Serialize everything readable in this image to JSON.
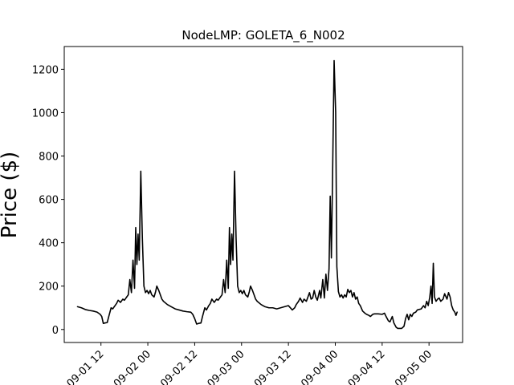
{
  "chart_data": {
    "type": "line",
    "title": "NodeLMP: GOLETA_6_N002",
    "xlabel": "",
    "ylabel": "Price ($)",
    "x_unit": "hours",
    "x_ticks": [
      {
        "hours": 36,
        "label": "09-01 12"
      },
      {
        "hours": 48,
        "label": "09-02 00"
      },
      {
        "hours": 60,
        "label": "09-02 12"
      },
      {
        "hours": 72,
        "label": "09-03 00"
      },
      {
        "hours": 84,
        "label": "09-03 12"
      },
      {
        "hours": 96,
        "label": "09-04 00"
      },
      {
        "hours": 108,
        "label": "09-04 12"
      },
      {
        "hours": 120,
        "label": "09-05 00"
      }
    ],
    "y_ticks": [
      0,
      200,
      400,
      600,
      800,
      1000,
      1200
    ],
    "xlim": [
      26.6,
      128.6
    ],
    "ylim": [
      -60,
      1305
    ],
    "grid": false,
    "color": "#000000",
    "series": [
      {
        "points": [
          [
            30,
            105
          ],
          [
            31,
            100
          ],
          [
            32,
            92
          ],
          [
            33,
            88
          ],
          [
            34,
            85
          ],
          [
            35,
            80
          ],
          [
            35.8,
            70
          ],
          [
            36.2,
            60
          ],
          [
            36.6,
            28
          ],
          [
            37,
            30
          ],
          [
            37.6,
            32
          ],
          [
            38,
            60
          ],
          [
            38.6,
            100
          ],
          [
            39,
            95
          ],
          [
            39.6,
            110
          ],
          [
            40,
            120
          ],
          [
            40.4,
            135
          ],
          [
            41,
            125
          ],
          [
            41.6,
            140
          ],
          [
            42,
            135
          ],
          [
            42.6,
            150
          ],
          [
            43,
            160
          ],
          [
            43.4,
            230
          ],
          [
            43.8,
            170
          ],
          [
            44.2,
            320
          ],
          [
            44.6,
            190
          ],
          [
            44.9,
            470
          ],
          [
            45.2,
            300
          ],
          [
            45.5,
            440
          ],
          [
            45.8,
            320
          ],
          [
            46.2,
            730
          ],
          [
            46.6,
            420
          ],
          [
            47,
            200
          ],
          [
            47.4,
            170
          ],
          [
            47.8,
            180
          ],
          [
            48.2,
            165
          ],
          [
            48.6,
            180
          ],
          [
            49,
            160
          ],
          [
            49.6,
            150
          ],
          [
            50,
            175
          ],
          [
            50.3,
            200
          ],
          [
            50.8,
            180
          ],
          [
            51.2,
            160
          ],
          [
            51.6,
            140
          ],
          [
            52,
            130
          ],
          [
            53,
            115
          ],
          [
            54,
            105
          ],
          [
            55,
            95
          ],
          [
            56,
            90
          ],
          [
            57,
            85
          ],
          [
            58,
            82
          ],
          [
            59,
            80
          ],
          [
            59.5,
            70
          ],
          [
            60,
            50
          ],
          [
            60.5,
            25
          ],
          [
            61,
            28
          ],
          [
            61.6,
            30
          ],
          [
            62,
            60
          ],
          [
            62.6,
            100
          ],
          [
            63,
            90
          ],
          [
            63.6,
            110
          ],
          [
            64,
            120
          ],
          [
            64.4,
            140
          ],
          [
            65,
            125
          ],
          [
            65.6,
            140
          ],
          [
            66,
            135
          ],
          [
            66.6,
            150
          ],
          [
            67,
            160
          ],
          [
            67.4,
            230
          ],
          [
            67.8,
            170
          ],
          [
            68.2,
            320
          ],
          [
            68.6,
            190
          ],
          [
            68.9,
            470
          ],
          [
            69.2,
            300
          ],
          [
            69.5,
            440
          ],
          [
            69.8,
            320
          ],
          [
            70.2,
            730
          ],
          [
            70.6,
            420
          ],
          [
            71,
            200
          ],
          [
            71.4,
            170
          ],
          [
            71.8,
            180
          ],
          [
            72.2,
            165
          ],
          [
            72.6,
            180
          ],
          [
            73,
            160
          ],
          [
            73.6,
            150
          ],
          [
            74,
            175
          ],
          [
            74.3,
            200
          ],
          [
            74.8,
            180
          ],
          [
            75.2,
            160
          ],
          [
            75.6,
            140
          ],
          [
            76,
            130
          ],
          [
            77,
            115
          ],
          [
            78,
            105
          ],
          [
            79,
            100
          ],
          [
            80,
            100
          ],
          [
            81,
            95
          ],
          [
            82,
            100
          ],
          [
            83,
            105
          ],
          [
            84,
            110
          ],
          [
            85,
            90
          ],
          [
            85.6,
            100
          ],
          [
            86,
            115
          ],
          [
            86.6,
            130
          ],
          [
            87,
            145
          ],
          [
            87.6,
            125
          ],
          [
            88,
            140
          ],
          [
            88.6,
            130
          ],
          [
            89,
            150
          ],
          [
            89.4,
            170
          ],
          [
            89.8,
            140
          ],
          [
            90.2,
            145
          ],
          [
            90.6,
            180
          ],
          [
            91,
            150
          ],
          [
            91.4,
            135
          ],
          [
            92,
            180
          ],
          [
            92.3,
            145
          ],
          [
            92.8,
            230
          ],
          [
            93.2,
            145
          ],
          [
            93.6,
            255
          ],
          [
            94,
            180
          ],
          [
            94.4,
            280
          ],
          [
            94.7,
            615
          ],
          [
            95,
            330
          ],
          [
            95.3,
            700
          ],
          [
            95.7,
            1240
          ],
          [
            96.1,
            1000
          ],
          [
            96.4,
            290
          ],
          [
            96.8,
            175
          ],
          [
            97.2,
            150
          ],
          [
            97.6,
            160
          ],
          [
            98,
            145
          ],
          [
            98.4,
            160
          ],
          [
            98.8,
            150
          ],
          [
            99.2,
            185
          ],
          [
            99.6,
            170
          ],
          [
            100,
            180
          ],
          [
            100.4,
            150
          ],
          [
            100.8,
            170
          ],
          [
            101.2,
            140
          ],
          [
            101.6,
            150
          ],
          [
            102,
            120
          ],
          [
            102.4,
            110
          ],
          [
            103,
            85
          ],
          [
            103.6,
            75
          ],
          [
            104,
            70
          ],
          [
            104.6,
            65
          ],
          [
            105,
            60
          ],
          [
            105.6,
            70
          ],
          [
            106,
            72
          ],
          [
            107,
            72
          ],
          [
            108,
            70
          ],
          [
            108.6,
            75
          ],
          [
            109,
            60
          ],
          [
            109.6,
            40
          ],
          [
            110,
            35
          ],
          [
            110.6,
            60
          ],
          [
            111,
            30
          ],
          [
            111.6,
            10
          ],
          [
            112,
            5
          ],
          [
            113,
            5
          ],
          [
            113.6,
            15
          ],
          [
            114,
            50
          ],
          [
            114.4,
            70
          ],
          [
            114.8,
            45
          ],
          [
            115.2,
            70
          ],
          [
            115.6,
            60
          ],
          [
            116,
            75
          ],
          [
            116.6,
            80
          ],
          [
            117,
            90
          ],
          [
            118,
            95
          ],
          [
            118.6,
            110
          ],
          [
            119,
            100
          ],
          [
            119.4,
            130
          ],
          [
            119.8,
            110
          ],
          [
            120.2,
            150
          ],
          [
            120.5,
            200
          ],
          [
            120.8,
            120
          ],
          [
            121.1,
            305
          ],
          [
            121.4,
            150
          ],
          [
            121.8,
            130
          ],
          [
            122.2,
            140
          ],
          [
            122.6,
            145
          ],
          [
            123,
            130
          ],
          [
            123.6,
            140
          ],
          [
            124,
            165
          ],
          [
            124.6,
            140
          ],
          [
            125,
            170
          ],
          [
            125.4,
            150
          ],
          [
            125.8,
            110
          ],
          [
            126.2,
            90
          ],
          [
            126.6,
            80
          ],
          [
            126.9,
            65
          ],
          [
            127.2,
            80
          ]
        ]
      }
    ]
  }
}
